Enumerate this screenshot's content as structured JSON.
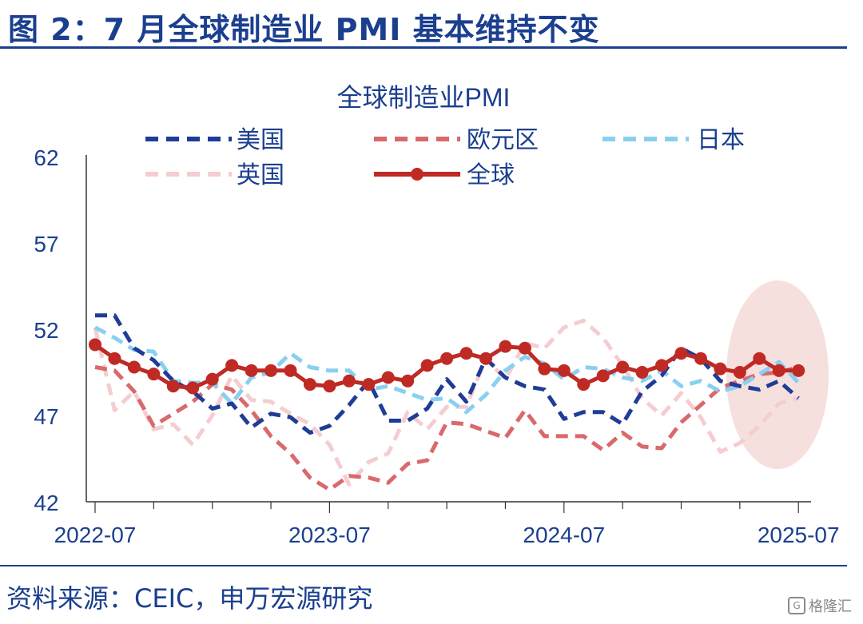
{
  "figure": {
    "title": "图 2：7 月全球制造业 PMI 基本维持不变",
    "source": "资料来源：CEIC，申万宏源研究",
    "watermark": "格隆汇"
  },
  "colors": {
    "header": "#1b3f8f",
    "us": "#1f3c96",
    "eu": "#d9696b",
    "jp": "#88d0f2",
    "uk": "#f5cdd0",
    "global": "#bf2a24",
    "highlight": "#f3d6d3"
  },
  "chart_data": {
    "type": "line",
    "title": "全球制造业PMI",
    "ylim": [
      42,
      62
    ],
    "yticks": [
      42,
      47,
      52,
      57,
      62
    ],
    "xticks": [
      "2022-07",
      "2023-07",
      "2024-07",
      "2025-07"
    ],
    "legend_position": "top",
    "grid": false,
    "x": [
      "2022-07",
      "2022-08",
      "2022-09",
      "2022-10",
      "2022-11",
      "2022-12",
      "2023-01",
      "2023-02",
      "2023-03",
      "2023-04",
      "2023-05",
      "2023-06",
      "2023-07",
      "2023-08",
      "2023-09",
      "2023-10",
      "2023-11",
      "2023-12",
      "2024-01",
      "2024-02",
      "2024-03",
      "2024-04",
      "2024-05",
      "2024-06",
      "2024-07",
      "2024-08",
      "2024-09",
      "2024-10",
      "2024-11",
      "2024-12",
      "2025-01",
      "2025-02",
      "2025-03",
      "2025-04",
      "2025-05",
      "2025-06",
      "2025-07"
    ],
    "series": [
      {
        "name": "美国",
        "key": "us",
        "style": "dash",
        "values": [
          52.8,
          52.8,
          50.9,
          50.2,
          49.0,
          48.4,
          47.4,
          47.7,
          46.3,
          47.1,
          46.9,
          46.0,
          46.4,
          47.6,
          49.0,
          46.7,
          46.7,
          47.4,
          49.1,
          47.8,
          50.3,
          49.2,
          48.7,
          48.5,
          46.8,
          47.2,
          47.2,
          46.5,
          48.4,
          49.3,
          50.9,
          50.3,
          49.0,
          48.7,
          48.5,
          49.0,
          48.0
        ]
      },
      {
        "name": "欧元区",
        "key": "eu",
        "style": "dash",
        "values": [
          49.8,
          49.6,
          48.4,
          46.4,
          47.1,
          47.8,
          48.8,
          48.5,
          47.3,
          45.8,
          44.8,
          43.4,
          42.7,
          43.5,
          43.4,
          43.1,
          44.2,
          44.4,
          46.6,
          46.5,
          46.1,
          45.7,
          47.3,
          45.8,
          45.8,
          45.8,
          45.0,
          46.0,
          45.2,
          45.1,
          46.6,
          47.6,
          48.6,
          49.0,
          49.4,
          49.5,
          49.8
        ]
      },
      {
        "name": "日本",
        "key": "jp",
        "style": "dash",
        "values": [
          52.1,
          51.5,
          50.8,
          50.7,
          49.0,
          48.9,
          48.9,
          47.7,
          49.2,
          49.5,
          50.6,
          49.8,
          49.6,
          49.6,
          48.5,
          48.7,
          48.3,
          47.9,
          48.0,
          47.2,
          48.2,
          49.6,
          50.4,
          50.0,
          49.1,
          49.8,
          49.7,
          49.2,
          49.0,
          49.6,
          48.7,
          49.0,
          48.4,
          48.7,
          49.4,
          50.1,
          48.9
        ]
      },
      {
        "name": "英国",
        "key": "uk",
        "style": "dash",
        "values": [
          52.1,
          47.3,
          48.4,
          46.2,
          46.5,
          45.3,
          47.0,
          49.3,
          47.9,
          47.8,
          47.1,
          46.5,
          45.3,
          43.0,
          44.3,
          44.8,
          47.2,
          46.2,
          47.5,
          47.5,
          50.3,
          49.1,
          51.2,
          50.9,
          52.1,
          52.5,
          51.5,
          49.9,
          48.0,
          47.0,
          48.3,
          46.9,
          44.9,
          45.4,
          46.4,
          47.7,
          48.0
        ]
      },
      {
        "name": "全球",
        "key": "global",
        "style": "solid-marker",
        "values": [
          51.1,
          50.3,
          49.8,
          49.4,
          48.7,
          48.6,
          49.1,
          49.9,
          49.6,
          49.6,
          49.6,
          48.8,
          48.7,
          49.0,
          48.8,
          49.2,
          49.0,
          49.9,
          50.3,
          50.6,
          50.3,
          51.0,
          50.9,
          49.7,
          49.6,
          48.8,
          49.3,
          49.8,
          49.5,
          49.9,
          50.6,
          50.3,
          49.7,
          49.5,
          50.3,
          49.6,
          49.6
        ]
      }
    ]
  }
}
